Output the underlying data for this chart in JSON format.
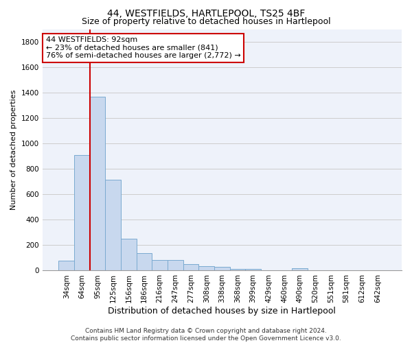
{
  "title": "44, WESTFIELDS, HARTLEPOOL, TS25 4BF",
  "subtitle": "Size of property relative to detached houses in Hartlepool",
  "xlabel": "Distribution of detached houses by size in Hartlepool",
  "ylabel": "Number of detached properties",
  "categories": [
    "34sqm",
    "64sqm",
    "95sqm",
    "125sqm",
    "156sqm",
    "186sqm",
    "216sqm",
    "247sqm",
    "277sqm",
    "308sqm",
    "338sqm",
    "368sqm",
    "399sqm",
    "429sqm",
    "460sqm",
    "490sqm",
    "520sqm",
    "551sqm",
    "581sqm",
    "612sqm",
    "642sqm"
  ],
  "values": [
    80,
    910,
    1370,
    715,
    250,
    140,
    85,
    85,
    50,
    35,
    30,
    15,
    15,
    0,
    0,
    20,
    0,
    0,
    0,
    0,
    0
  ],
  "bar_color": "#c8d8ee",
  "bar_edge_color": "#7aaad0",
  "grid_color": "#cccccc",
  "background_color": "#eef2fa",
  "vline_color": "#cc0000",
  "vline_x_index": 2,
  "annotation_text": "44 WESTFIELDS: 92sqm\n← 23% of detached houses are smaller (841)\n76% of semi-detached houses are larger (2,772) →",
  "annotation_box_color": "#ffffff",
  "annotation_box_edge": "#cc0000",
  "ylim": [
    0,
    1900
  ],
  "yticks": [
    0,
    200,
    400,
    600,
    800,
    1000,
    1200,
    1400,
    1600,
    1800
  ],
  "footer_text": "Contains HM Land Registry data © Crown copyright and database right 2024.\nContains public sector information licensed under the Open Government Licence v3.0.",
  "title_fontsize": 10,
  "subtitle_fontsize": 9,
  "xlabel_fontsize": 9,
  "ylabel_fontsize": 8,
  "tick_fontsize": 7.5,
  "annotation_fontsize": 8,
  "footer_fontsize": 6.5
}
